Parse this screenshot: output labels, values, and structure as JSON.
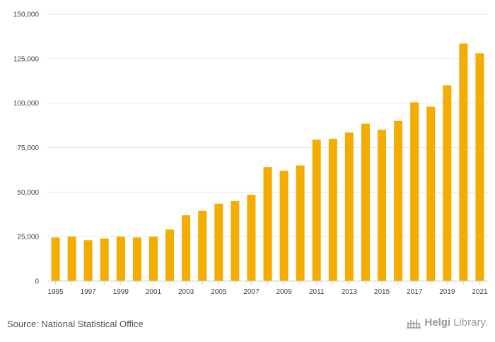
{
  "chart_data": {
    "type": "bar",
    "title": "",
    "xlabel": "",
    "ylabel": "",
    "ylim": [
      0,
      150000
    ],
    "yticks": [
      0,
      25000,
      50000,
      75000,
      100000,
      125000,
      150000
    ],
    "ytick_labels": [
      "0",
      "25,000",
      "50,000",
      "75,000",
      "100,000",
      "125,000",
      "150,000"
    ],
    "grid": true,
    "color": "#F5AC00",
    "categories": [
      "1995",
      "1996",
      "1997",
      "1998",
      "1999",
      "2000",
      "2001",
      "2002",
      "2003",
      "2004",
      "2005",
      "2006",
      "2007",
      "2008",
      "2009",
      "2010",
      "2011",
      "2012",
      "2013",
      "2014",
      "2015",
      "2016",
      "2017",
      "2018",
      "2019",
      "2020",
      "2021"
    ],
    "x_tick_labels": [
      "1995",
      "",
      "1997",
      "",
      "1999",
      "",
      "2001",
      "",
      "2003",
      "",
      "2005",
      "",
      "2007",
      "",
      "2009",
      "",
      "2011",
      "",
      "2013",
      "",
      "2015",
      "",
      "2017",
      "",
      "2019",
      "",
      "2021"
    ],
    "values": [
      24500,
      25000,
      23000,
      24000,
      25000,
      24500,
      25000,
      29000,
      37000,
      39500,
      43500,
      45000,
      48500,
      64000,
      62000,
      65000,
      79500,
      80000,
      83500,
      88500,
      85000,
      90000,
      100500,
      98000,
      110000,
      133500,
      128000
    ]
  },
  "source": "Source: National Statistical Office",
  "brand": {
    "name_bold": "Helgi",
    "name_light": "Library.",
    "icon": "helgi-library-logo-icon"
  }
}
